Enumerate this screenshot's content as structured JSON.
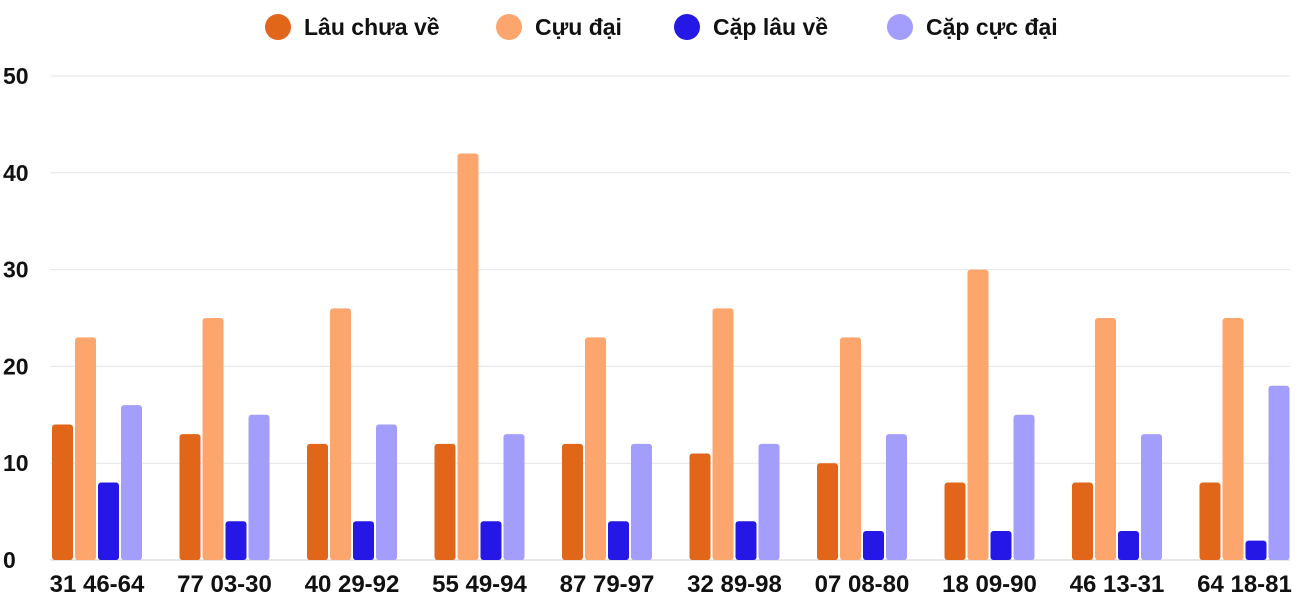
{
  "chart_data": {
    "type": "bar",
    "categories": [
      "31 46-64",
      "77 03-30",
      "40 29-92",
      "55 49-94",
      "87 79-97",
      "32 89-98",
      "07 08-80",
      "18 09-90",
      "46 13-31",
      "64 18-81"
    ],
    "series": [
      {
        "name": "Lâu chưa về",
        "color": "#e2661a",
        "values": [
          14,
          13,
          12,
          12,
          12,
          11,
          10,
          8,
          8,
          8
        ]
      },
      {
        "name": "Cựu đại",
        "color": "#fca66d",
        "values": [
          23,
          25,
          26,
          42,
          23,
          26,
          23,
          30,
          25,
          25
        ]
      },
      {
        "name": "Cặp lâu về",
        "color": "#2517e6",
        "values": [
          8,
          4,
          4,
          4,
          4,
          4,
          3,
          3,
          3,
          2
        ]
      },
      {
        "name": "Cặp cực đại",
        "color": "#a39dfc",
        "values": [
          16,
          15,
          14,
          13,
          12,
          12,
          13,
          15,
          13,
          18
        ]
      }
    ],
    "ylim": [
      0,
      50
    ],
    "yticks": [
      "0",
      "10",
      "20",
      "30",
      "40",
      "50"
    ],
    "grid": true,
    "legend_position": "top",
    "xlabel": "",
    "ylabel": "",
    "title": ""
  }
}
